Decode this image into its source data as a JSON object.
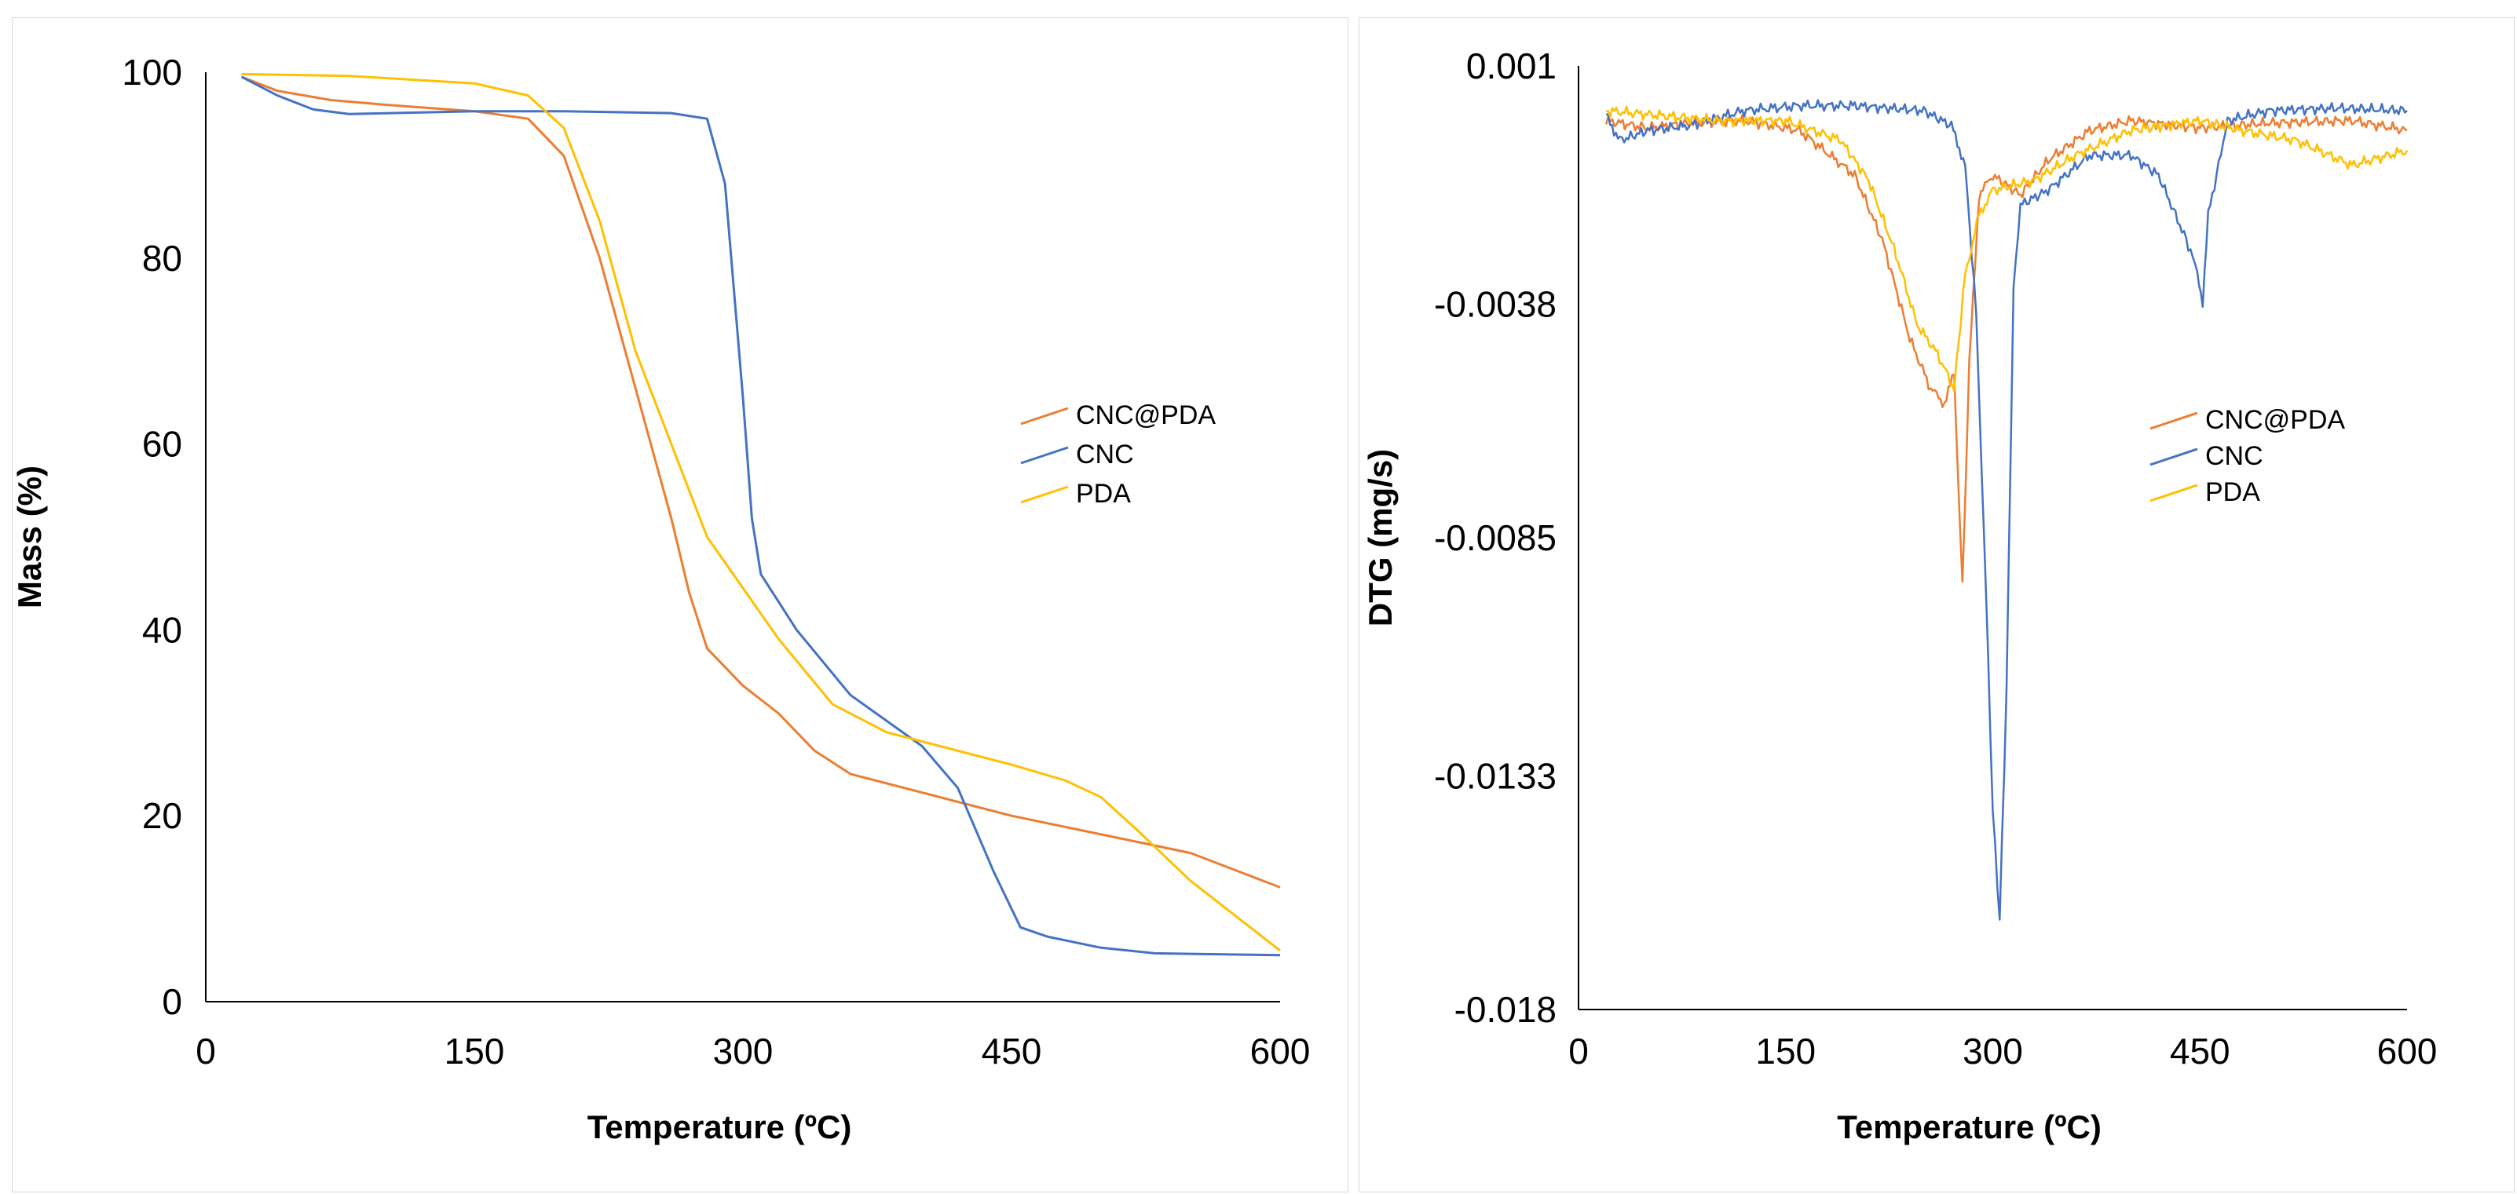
{
  "chart_data": [
    {
      "type": "line",
      "title": "",
      "xlabel": "Temperature (ºC)",
      "ylabel": "Mass (%)",
      "xlim": [
        0,
        600
      ],
      "ylim": [
        0,
        100
      ],
      "x_ticks": [
        "0",
        "150",
        "300",
        "450",
        "600"
      ],
      "y_ticks": [
        "0",
        "20",
        "40",
        "60",
        "80",
        "100"
      ],
      "grid": false,
      "legend_position": "right",
      "series": [
        {
          "name": "CNC@PDA",
          "color": "#ED7D31",
          "points": [
            [
              20,
              99.5
            ],
            [
              40,
              98
            ],
            [
              70,
              97
            ],
            [
              100,
              96.5
            ],
            [
              150,
              95.8
            ],
            [
              180,
              95
            ],
            [
              200,
              91
            ],
            [
              220,
              80
            ],
            [
              240,
              66
            ],
            [
              260,
              52
            ],
            [
              270,
              44
            ],
            [
              280,
              38
            ],
            [
              300,
              34
            ],
            [
              320,
              31
            ],
            [
              340,
              27
            ],
            [
              360,
              24.5
            ],
            [
              400,
              22.5
            ],
            [
              450,
              20
            ],
            [
              500,
              18
            ],
            [
              550,
              16
            ],
            [
              600,
              12.3
            ]
          ]
        },
        {
          "name": "CNC",
          "color": "#4472C4",
          "points": [
            [
              20,
              99.5
            ],
            [
              40,
              97.5
            ],
            [
              60,
              96
            ],
            [
              80,
              95.5
            ],
            [
              150,
              95.8
            ],
            [
              200,
              95.8
            ],
            [
              260,
              95.6
            ],
            [
              280,
              95
            ],
            [
              290,
              88
            ],
            [
              300,
              65
            ],
            [
              305,
              52
            ],
            [
              310,
              46
            ],
            [
              330,
              40
            ],
            [
              360,
              33
            ],
            [
              400,
              27.5
            ],
            [
              420,
              23
            ],
            [
              440,
              14
            ],
            [
              455,
              8
            ],
            [
              470,
              7
            ],
            [
              500,
              5.8
            ],
            [
              530,
              5.2
            ],
            [
              600,
              5
            ]
          ]
        },
        {
          "name": "PDA",
          "color": "#FFC000",
          "points": [
            [
              20,
              99.8
            ],
            [
              80,
              99.6
            ],
            [
              150,
              98.8
            ],
            [
              180,
              97.5
            ],
            [
              200,
              94
            ],
            [
              220,
              84
            ],
            [
              240,
              70
            ],
            [
              260,
              60
            ],
            [
              280,
              50
            ],
            [
              300,
              44.5
            ],
            [
              320,
              39
            ],
            [
              350,
              32
            ],
            [
              380,
              29
            ],
            [
              400,
              28
            ],
            [
              450,
              25.5
            ],
            [
              480,
              23.8
            ],
            [
              500,
              22
            ],
            [
              520,
              18.5
            ],
            [
              550,
              13
            ],
            [
              580,
              8.5
            ],
            [
              600,
              5.5
            ]
          ]
        }
      ]
    },
    {
      "type": "line",
      "title": "",
      "xlabel": "Temperature (ºC)",
      "ylabel": "DTG (mg/s)",
      "xlim": [
        0,
        600
      ],
      "ylim": [
        -0.018,
        0.001
      ],
      "x_ticks": [
        "0",
        "150",
        "300",
        "450",
        "600"
      ],
      "y_ticks": [
        "0.001",
        "-0.0038",
        "-0.0085",
        "-0.0133",
        "-0.018"
      ],
      "grid": false,
      "legend_position": "right",
      "series": [
        {
          "name": "CNC@PDA",
          "color": "#ED7D31",
          "points": [
            [
              20,
              -0.0001
            ],
            [
              50,
              -0.00025
            ],
            [
              80,
              -0.00015
            ],
            [
              120,
              -0.0001
            ],
            [
              160,
              -0.0003
            ],
            [
              200,
              -0.0012
            ],
            [
              220,
              -0.0025
            ],
            [
              240,
              -0.0045
            ],
            [
              255,
              -0.0055
            ],
            [
              265,
              -0.0058
            ],
            [
              272,
              -0.0052
            ],
            [
              278,
              -0.0095
            ],
            [
              283,
              -0.005
            ],
            [
              290,
              -0.0016
            ],
            [
              300,
              -0.0012
            ],
            [
              320,
              -0.0016
            ],
            [
              340,
              -0.0009
            ],
            [
              370,
              -0.0003
            ],
            [
              400,
              -0.0001
            ],
            [
              450,
              -0.00025
            ],
            [
              500,
              -0.00015
            ],
            [
              560,
              -0.0001
            ],
            [
              600,
              -0.0003
            ]
          ]
        },
        {
          "name": "CNC",
          "color": "#4472C4",
          "points": [
            [
              20,
              0
            ],
            [
              30,
              -0.0005
            ],
            [
              50,
              -0.0003
            ],
            [
              80,
              -0.0002
            ],
            [
              120,
              0.0001
            ],
            [
              160,
              0.0002
            ],
            [
              200,
              0.0002
            ],
            [
              250,
              0.0001
            ],
            [
              270,
              -0.0002
            ],
            [
              280,
              -0.001
            ],
            [
              288,
              -0.004
            ],
            [
              295,
              -0.0095
            ],
            [
              300,
              -0.014
            ],
            [
              305,
              -0.0162
            ],
            [
              310,
              -0.0115
            ],
            [
              315,
              -0.0035
            ],
            [
              320,
              -0.0018
            ],
            [
              340,
              -0.0015
            ],
            [
              370,
              -0.0008
            ],
            [
              400,
              -0.0008
            ],
            [
              420,
              -0.0012
            ],
            [
              440,
              -0.0025
            ],
            [
              448,
              -0.0031
            ],
            [
              452,
              -0.0038
            ],
            [
              456,
              -0.002
            ],
            [
              462,
              -0.0012
            ],
            [
              470,
              -0.0001
            ],
            [
              500,
              0.0001
            ],
            [
              550,
              0.00015
            ],
            [
              600,
              0.0001
            ]
          ]
        },
        {
          "name": "PDA",
          "color": "#FFC000",
          "points": [
            [
              20,
              0.0001
            ],
            [
              60,
              0
            ],
            [
              100,
              -0.0001
            ],
            [
              150,
              -0.0001
            ],
            [
              190,
              -0.0005
            ],
            [
              210,
              -0.0013
            ],
            [
              230,
              -0.0028
            ],
            [
              245,
              -0.0042
            ],
            [
              260,
              -0.0048
            ],
            [
              272,
              -0.0055
            ],
            [
              280,
              -0.0032
            ],
            [
              290,
              -0.002
            ],
            [
              300,
              -0.0015
            ],
            [
              330,
              -0.0013
            ],
            [
              360,
              -0.0008
            ],
            [
              400,
              -0.0003
            ],
            [
              450,
              -0.0001
            ],
            [
              480,
              -0.0003
            ],
            [
              520,
              -0.0005
            ],
            [
              560,
              -0.001
            ],
            [
              600,
              -0.0007
            ]
          ]
        }
      ]
    }
  ]
}
